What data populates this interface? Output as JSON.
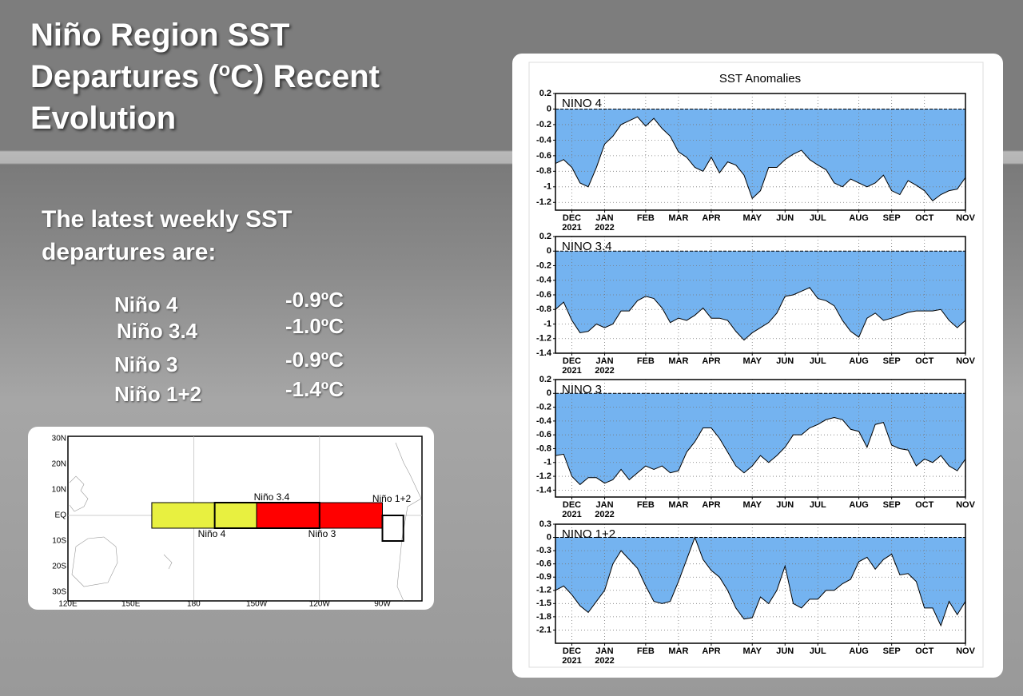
{
  "slide": {
    "title": [
      "Niño Region SST Departures (",
      "o",
      "C) Recent Evolution"
    ],
    "subtitle": "The latest weekly SST departures are:",
    "table": {
      "rows": [
        [
          "Niño 4",
          "-0.9ºC"
        ],
        [
          "Niño 3.4",
          "-1.0ºC"
        ],
        [
          "Niño 3",
          "-0.9ºC"
        ],
        [
          "Niño 1+2",
          "-1.4ºC"
        ]
      ]
    }
  },
  "map": {
    "lat_labels": [
      "30N",
      "20N",
      "10N",
      "EQ",
      "10S",
      "20S",
      "30S"
    ],
    "lon_labels": [
      "120E",
      "150E",
      "180",
      "150W",
      "120W",
      "90W"
    ],
    "regions": [
      "Niño 3.4",
      "Niño 1+2",
      "Niño 4",
      "Niño 3"
    ]
  },
  "panel_title": "SST Anomalies",
  "chart_data": [
    {
      "type": "area",
      "title": "NINO 4",
      "color": "#74b3f0",
      "categories": [
        null,
        null,
        "DEC\n2021",
        null,
        null,
        null,
        "JAN\n2022",
        null,
        null,
        null,
        null,
        "FEB",
        null,
        null,
        null,
        "MAR",
        null,
        null,
        null,
        "APR",
        null,
        null,
        null,
        null,
        "MAY",
        null,
        null,
        null,
        "JUN",
        null,
        null,
        null,
        "JUL",
        null,
        null,
        null,
        null,
        "AUG",
        null,
        null,
        null,
        "SEP",
        null,
        null,
        null,
        "OCT",
        null,
        null,
        null,
        null,
        "NOV"
      ],
      "values": [
        -0.7,
        -0.65,
        -0.75,
        -0.95,
        -1.0,
        -0.75,
        -0.45,
        -0.35,
        -0.2,
        -0.15,
        -0.1,
        -0.22,
        -0.12,
        -0.25,
        -0.35,
        -0.55,
        -0.62,
        -0.75,
        -0.8,
        -0.62,
        -0.82,
        -0.68,
        -0.72,
        -0.85,
        -1.15,
        -1.05,
        -0.75,
        -0.75,
        -0.65,
        -0.58,
        -0.53,
        -0.65,
        -0.72,
        -0.78,
        -0.95,
        -1.0,
        -0.9,
        -0.95,
        -1.0,
        -0.95,
        -0.85,
        -1.05,
        -1.1,
        -0.92,
        -0.98,
        -1.05,
        -1.18,
        -1.1,
        -1.05,
        -1.03,
        -0.88
      ],
      "ylim": [
        -1.3,
        0.2
      ],
      "yticks": [
        0.2,
        0,
        -0.2,
        -0.4,
        -0.6,
        -0.8,
        -1,
        -1.2
      ],
      "grid": true
    },
    {
      "type": "area",
      "title": "NINO 3.4",
      "color": "#74b3f0",
      "categories": [
        null,
        null,
        "DEC\n2021",
        null,
        null,
        null,
        "JAN\n2022",
        null,
        null,
        null,
        null,
        "FEB",
        null,
        null,
        null,
        "MAR",
        null,
        null,
        null,
        "APR",
        null,
        null,
        null,
        null,
        "MAY",
        null,
        null,
        null,
        "JUN",
        null,
        null,
        null,
        "JUL",
        null,
        null,
        null,
        null,
        "AUG",
        null,
        null,
        null,
        "SEP",
        null,
        null,
        null,
        "OCT",
        null,
        null,
        null,
        null,
        "NOV"
      ],
      "values": [
        -0.8,
        -0.7,
        -0.95,
        -1.12,
        -1.1,
        -1.0,
        -1.05,
        -1.0,
        -0.82,
        -0.82,
        -0.68,
        -0.62,
        -0.65,
        -0.78,
        -0.98,
        -0.92,
        -0.95,
        -0.88,
        -0.78,
        -0.92,
        -0.92,
        -0.95,
        -1.1,
        -1.22,
        -1.12,
        -1.05,
        -0.98,
        -0.85,
        -0.62,
        -0.6,
        -0.55,
        -0.5,
        -0.65,
        -0.68,
        -0.75,
        -0.95,
        -1.1,
        -1.18,
        -0.92,
        -0.85,
        -0.95,
        -0.92,
        -0.88,
        -0.84,
        -0.82,
        -0.82,
        -0.82,
        -0.8,
        -0.95,
        -1.05,
        -0.95
      ],
      "ylim": [
        -1.4,
        0.2
      ],
      "yticks": [
        0.2,
        0,
        -0.2,
        -0.4,
        -0.6,
        -0.8,
        -1,
        -1.2,
        -1.4
      ],
      "grid": true
    },
    {
      "type": "area",
      "title": "NINO 3",
      "color": "#74b3f0",
      "categories": [
        null,
        null,
        "DEC\n2021",
        null,
        null,
        null,
        "JAN\n2022",
        null,
        null,
        null,
        null,
        "FEB",
        null,
        null,
        null,
        "MAR",
        null,
        null,
        null,
        "APR",
        null,
        null,
        null,
        null,
        "MAY",
        null,
        null,
        null,
        "JUN",
        null,
        null,
        null,
        "JUL",
        null,
        null,
        null,
        null,
        "AUG",
        null,
        null,
        null,
        "SEP",
        null,
        null,
        null,
        "OCT",
        null,
        null,
        null,
        null,
        "NOV"
      ],
      "values": [
        -0.9,
        -0.88,
        -1.2,
        -1.32,
        -1.22,
        -1.22,
        -1.3,
        -1.25,
        -1.1,
        -1.25,
        -1.15,
        -1.05,
        -1.1,
        -1.05,
        -1.15,
        -1.12,
        -0.85,
        -0.7,
        -0.5,
        -0.5,
        -0.65,
        -0.85,
        -1.05,
        -1.15,
        -1.05,
        -0.9,
        -1.0,
        -0.9,
        -0.78,
        -0.6,
        -0.6,
        -0.5,
        -0.45,
        -0.38,
        -0.35,
        -0.38,
        -0.52,
        -0.55,
        -0.78,
        -0.45,
        -0.42,
        -0.75,
        -0.8,
        -0.82,
        -1.05,
        -0.95,
        -1.0,
        -0.9,
        -1.05,
        -1.12,
        -0.95
      ],
      "ylim": [
        -1.5,
        0.2
      ],
      "yticks": [
        0.2,
        0,
        -0.2,
        -0.4,
        -0.6,
        -0.8,
        -1,
        -1.2,
        -1.4
      ],
      "grid": true
    },
    {
      "type": "area",
      "title": "NINO 1+2",
      "color": "#74b3f0",
      "categories": [
        null,
        null,
        "DEC\n2021",
        null,
        null,
        null,
        "JAN\n2022",
        null,
        null,
        null,
        null,
        "FEB",
        null,
        null,
        null,
        "MAR",
        null,
        null,
        null,
        "APR",
        null,
        null,
        null,
        null,
        "MAY",
        null,
        null,
        null,
        "JUN",
        null,
        null,
        null,
        "JUL",
        null,
        null,
        null,
        null,
        "AUG",
        null,
        null,
        null,
        "SEP",
        null,
        null,
        null,
        "OCT",
        null,
        null,
        null,
        null,
        "NOV"
      ],
      "values": [
        -1.2,
        -1.1,
        -1.3,
        -1.55,
        -1.7,
        -1.45,
        -1.2,
        -0.6,
        -0.3,
        -0.5,
        -0.7,
        -1.1,
        -1.45,
        -1.5,
        -1.45,
        -1.0,
        -0.5,
        0,
        -0.5,
        -0.75,
        -0.9,
        -1.2,
        -1.6,
        -1.85,
        -1.82,
        -1.35,
        -1.5,
        -1.2,
        -0.65,
        -1.5,
        -1.6,
        -1.4,
        -1.4,
        -1.2,
        -1.2,
        -1.05,
        -0.95,
        -0.55,
        -0.45,
        -0.72,
        -0.5,
        -0.38,
        -0.85,
        -0.82,
        -1.0,
        -1.6,
        -1.6,
        -2.0,
        -1.45,
        -1.75,
        -1.45
      ],
      "ylim": [
        -2.4,
        0.3
      ],
      "yticks": [
        0.3,
        0,
        -0.3,
        -0.6,
        -0.9,
        -1.2,
        -1.5,
        -1.8,
        -2.1
      ],
      "grid": true
    }
  ]
}
